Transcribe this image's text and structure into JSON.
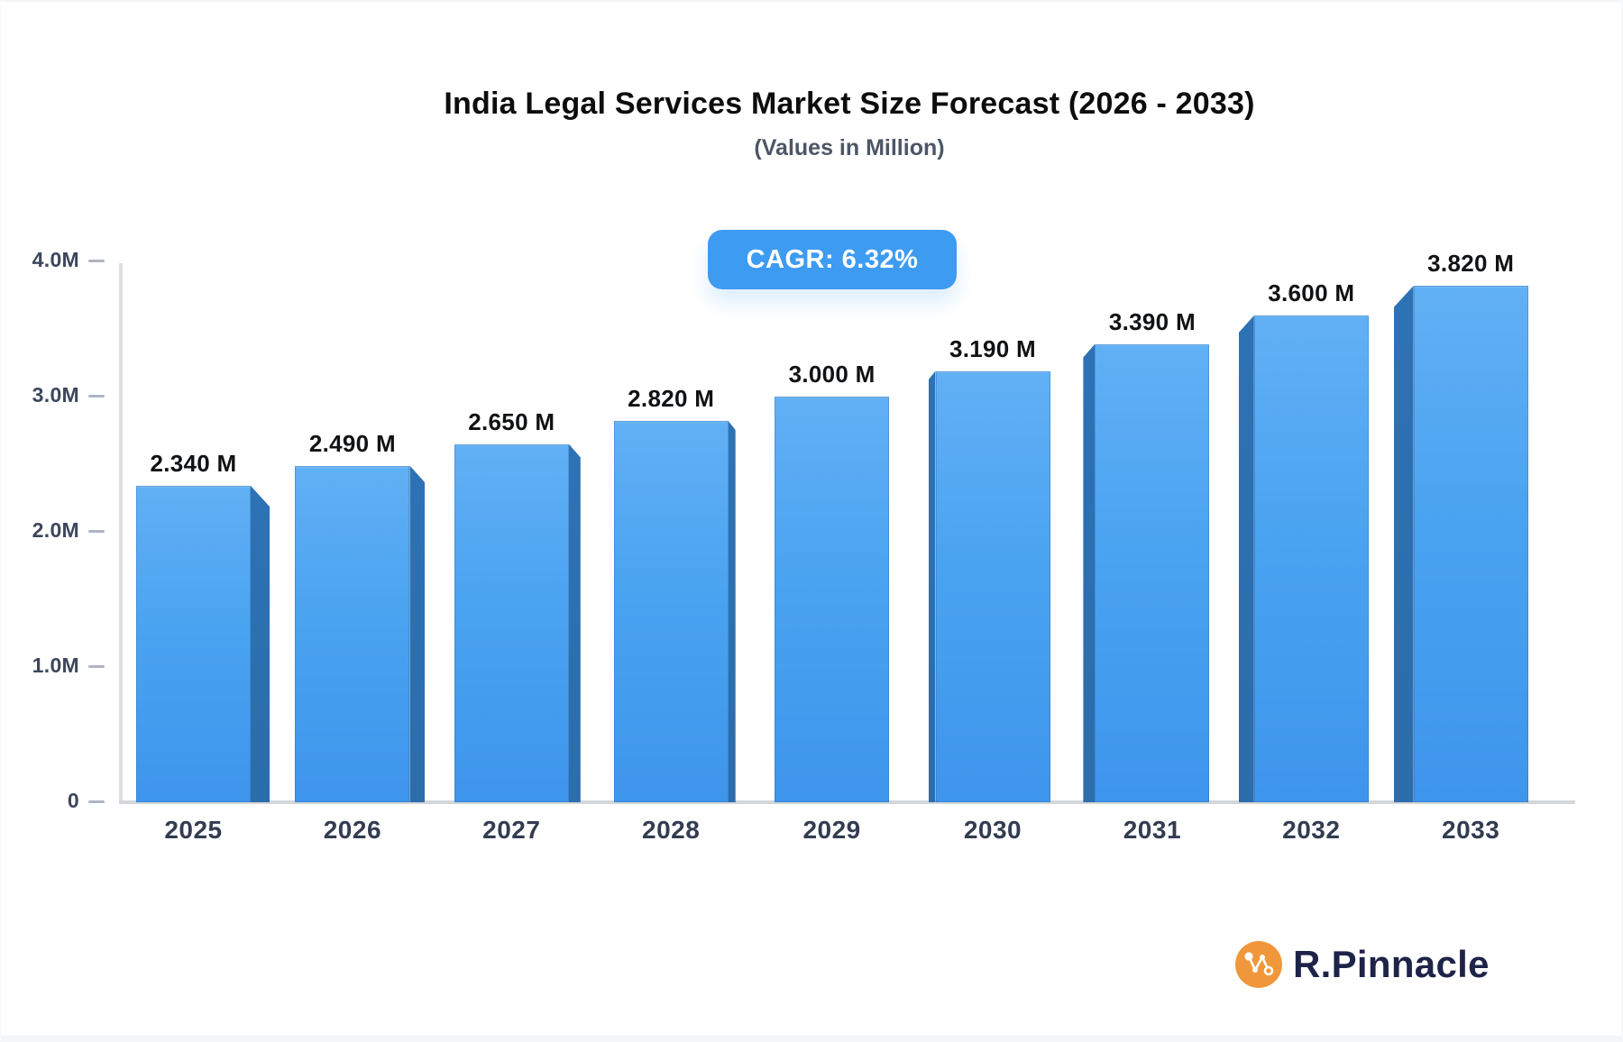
{
  "chart": {
    "title": "India Legal Services Market Size Forecast (2026 - 2033)",
    "subtitle": "(Values in Million)",
    "cagr_badge": "CAGR: 6.32%"
  },
  "logo": {
    "text": "R.Pinnacle",
    "icon": "network-graph-icon"
  },
  "colors": {
    "bar_front_top": "#61b0f5",
    "bar_front_mid": "#4aa3f0",
    "bar_front_bottom": "#3e95ec",
    "bar_side": "#2d72b5",
    "badge_bg": "#3d9bf2",
    "badge_text": "#ffffff",
    "title_text": "#0d0d0d",
    "subtitle_text": "#4d5666",
    "axis_text": "#3d475c",
    "year_text": "#333c50",
    "axis_line": "#dcdfe4",
    "logo_text": "#1e2348",
    "logo_circle": "#f0973b"
  },
  "chart_data": {
    "type": "bar",
    "title": "India Legal Services Market Size Forecast (2026 - 2033)",
    "subtitle": "(Values in Million)",
    "annotation": "CAGR: 6.32%",
    "unit": "Million",
    "categories": [
      "2025",
      "2026",
      "2027",
      "2028",
      "2029",
      "2030",
      "2031",
      "2032",
      "2033"
    ],
    "values": [
      2.34,
      2.49,
      2.65,
      2.82,
      3.0,
      3.19,
      3.39,
      3.6,
      3.82
    ],
    "value_labels": [
      "2.340 M",
      "2.490 M",
      "2.650 M",
      "2.820 M",
      "3.000 M",
      "3.190 M",
      "3.390 M",
      "3.600 M",
      "3.820 M"
    ],
    "y_ticks": [
      {
        "label": "0",
        "value": 0
      },
      {
        "label": "1.0M",
        "value": 1
      },
      {
        "label": "2.0M",
        "value": 2
      },
      {
        "label": "3.0M",
        "value": 3
      },
      {
        "label": "4.0M",
        "value": 4
      }
    ],
    "ylim": [
      0,
      4.0
    ],
    "grid": false,
    "legend": false,
    "bar_style": "3d"
  }
}
